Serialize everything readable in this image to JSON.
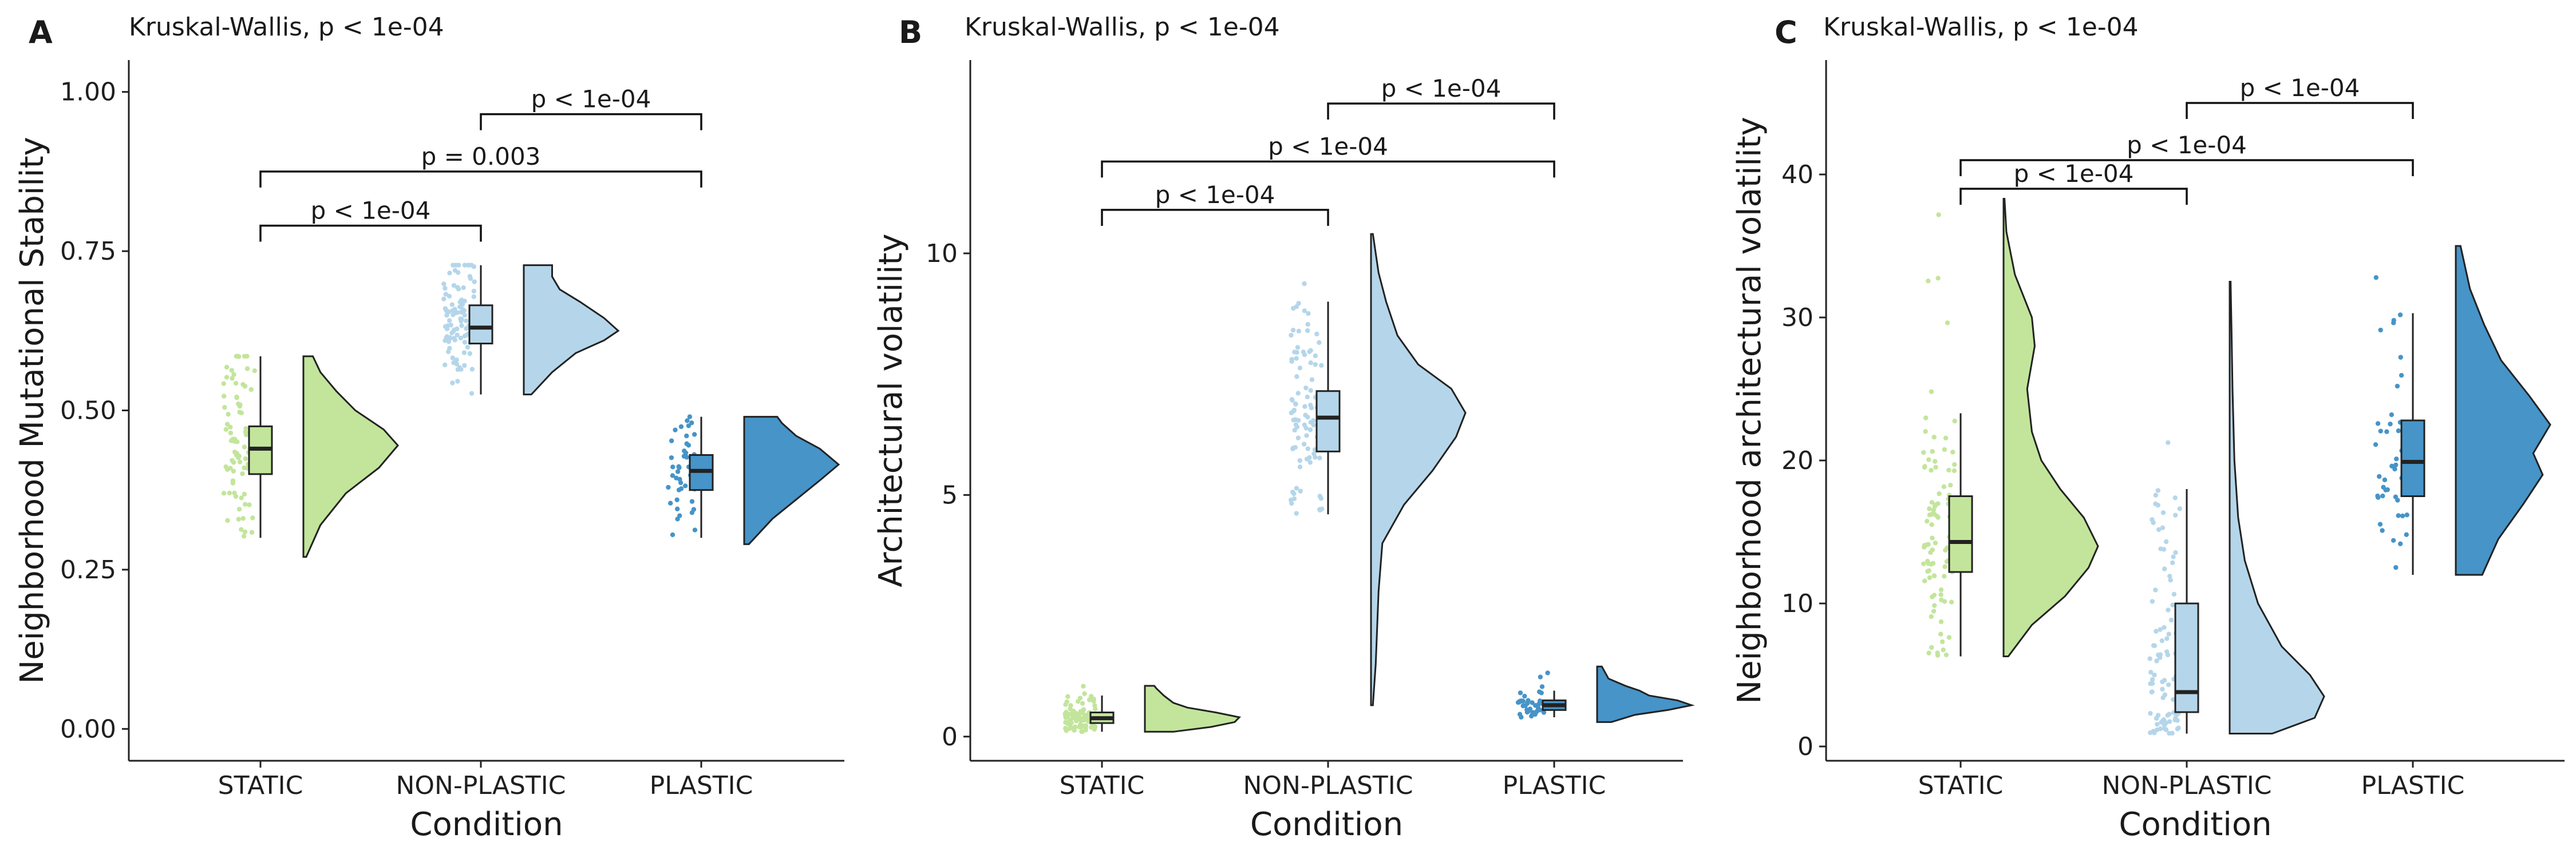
{
  "colors": {
    "STATIC": "#c2e59b",
    "NON-PLASTIC": "#b5d6ea",
    "PLASTIC": "#4694c8"
  },
  "chart_data": [
    {
      "type": "raincloud",
      "panel": "A",
      "test_label": "Kruskal-Wallis, p < 1e-04",
      "xlabel": "Condition",
      "ylabel": "Neighborhood Mutational Stability",
      "ylim": [
        -0.05,
        1.05
      ],
      "yticks": [
        0.0,
        0.25,
        0.5,
        0.75,
        1.0
      ],
      "ytick_labels": [
        "0.00",
        "0.25",
        "0.50",
        "0.75",
        "1.00"
      ],
      "categories": [
        "STATIC",
        "NON-PLASTIC",
        "PLASTIC"
      ],
      "groups": [
        {
          "name": "STATIC",
          "min": 0.27,
          "q1": 0.4,
          "median": 0.44,
          "q3": 0.475,
          "max": 0.585,
          "whisker_low": 0.3,
          "whisker_high": 0.585,
          "n": 90,
          "density": [
            [
              0.27,
              0.03
            ],
            [
              0.32,
              0.18
            ],
            [
              0.37,
              0.45
            ],
            [
              0.41,
              0.8
            ],
            [
              0.445,
              1.0
            ],
            [
              0.47,
              0.85
            ],
            [
              0.5,
              0.55
            ],
            [
              0.53,
              0.35
            ],
            [
              0.56,
              0.18
            ],
            [
              0.585,
              0.1
            ]
          ]
        },
        {
          "name": "NON-PLASTIC",
          "min": 0.525,
          "q1": 0.605,
          "median": 0.63,
          "q3": 0.665,
          "max": 0.728,
          "whisker_low": 0.525,
          "whisker_high": 0.728,
          "n": 100,
          "density": [
            [
              0.525,
              0.08
            ],
            [
              0.56,
              0.3
            ],
            [
              0.59,
              0.55
            ],
            [
              0.61,
              0.85
            ],
            [
              0.625,
              1.0
            ],
            [
              0.645,
              0.85
            ],
            [
              0.67,
              0.6
            ],
            [
              0.69,
              0.38
            ],
            [
              0.71,
              0.3
            ],
            [
              0.728,
              0.3
            ]
          ]
        },
        {
          "name": "PLASTIC",
          "min": 0.29,
          "q1": 0.375,
          "median": 0.405,
          "q3": 0.43,
          "max": 0.49,
          "whisker_low": 0.3,
          "whisker_high": 0.49,
          "n": 45,
          "density": [
            [
              0.29,
              0.05
            ],
            [
              0.33,
              0.3
            ],
            [
              0.36,
              0.55
            ],
            [
              0.39,
              0.8
            ],
            [
              0.415,
              1.0
            ],
            [
              0.44,
              0.8
            ],
            [
              0.46,
              0.55
            ],
            [
              0.48,
              0.4
            ],
            [
              0.49,
              0.35
            ]
          ]
        }
      ],
      "comparisons": [
        {
          "from": "STATIC",
          "to": "NON-PLASTIC",
          "y": 0.79,
          "label": "p < 1e-04"
        },
        {
          "from": "STATIC",
          "to": "PLASTIC",
          "y": 0.875,
          "label": "p = 0.003"
        },
        {
          "from": "NON-PLASTIC",
          "to": "PLASTIC",
          "y": 0.965,
          "label": "p < 1e-04"
        }
      ]
    },
    {
      "type": "raincloud",
      "panel": "B",
      "test_label": "Kruskal-Wallis, p < 1e-04",
      "xlabel": "Condition",
      "ylabel": "Architectural volatility",
      "ylim": [
        -0.5,
        14.0
      ],
      "yticks": [
        0,
        5,
        10
      ],
      "ytick_labels": [
        "0",
        "5",
        "10"
      ],
      "categories": [
        "STATIC",
        "NON-PLASTIC",
        "PLASTIC"
      ],
      "groups": [
        {
          "name": "STATIC",
          "min": 0.1,
          "q1": 0.28,
          "median": 0.38,
          "q3": 0.5,
          "max": 1.05,
          "whisker_low": 0.1,
          "whisker_high": 0.85,
          "n": 100,
          "density": [
            [
              0.1,
              0.3
            ],
            [
              0.2,
              0.7
            ],
            [
              0.3,
              0.95
            ],
            [
              0.4,
              1.0
            ],
            [
              0.5,
              0.75
            ],
            [
              0.6,
              0.45
            ],
            [
              0.7,
              0.3
            ],
            [
              0.85,
              0.2
            ],
            [
              1.0,
              0.12
            ],
            [
              1.05,
              0.1
            ]
          ]
        },
        {
          "name": "NON-PLASTIC",
          "min": 0.65,
          "q1": 5.9,
          "median": 6.6,
          "q3": 7.15,
          "max": 10.4,
          "whisker_low": 4.6,
          "whisker_high": 9.0,
          "n": 100,
          "density": [
            [
              0.65,
              0.02
            ],
            [
              1.5,
              0.05
            ],
            [
              3.0,
              0.08
            ],
            [
              4.0,
              0.12
            ],
            [
              4.8,
              0.35
            ],
            [
              5.5,
              0.65
            ],
            [
              6.2,
              0.9
            ],
            [
              6.7,
              1.0
            ],
            [
              7.2,
              0.85
            ],
            [
              7.7,
              0.5
            ],
            [
              8.3,
              0.28
            ],
            [
              9.0,
              0.16
            ],
            [
              9.6,
              0.08
            ],
            [
              10.4,
              0.02
            ]
          ]
        },
        {
          "name": "PLASTIC",
          "min": 0.3,
          "q1": 0.55,
          "median": 0.65,
          "q3": 0.75,
          "max": 1.45,
          "whisker_low": 0.4,
          "whisker_high": 0.95,
          "n": 45,
          "density": [
            [
              0.3,
              0.15
            ],
            [
              0.45,
              0.4
            ],
            [
              0.55,
              0.75
            ],
            [
              0.65,
              1.0
            ],
            [
              0.75,
              0.85
            ],
            [
              0.85,
              0.55
            ],
            [
              0.95,
              0.45
            ],
            [
              1.05,
              0.3
            ],
            [
              1.2,
              0.12
            ],
            [
              1.45,
              0.05
            ]
          ]
        }
      ],
      "comparisons": [
        {
          "from": "STATIC",
          "to": "NON-PLASTIC",
          "y": 10.9,
          "label": "p < 1e-04"
        },
        {
          "from": "STATIC",
          "to": "PLASTIC",
          "y": 11.9,
          "label": "p < 1e-04"
        },
        {
          "from": "NON-PLASTIC",
          "to": "PLASTIC",
          "y": 13.1,
          "label": "p < 1e-04"
        }
      ]
    },
    {
      "type": "raincloud",
      "panel": "C",
      "test_label": "Kruskal-Wallis, p < 1e-04",
      "xlabel": "Condition",
      "ylabel": "Neighborhood architectural volatility",
      "ylim": [
        -1.0,
        48.0
      ],
      "yticks": [
        0,
        10,
        20,
        30,
        40
      ],
      "ytick_labels": [
        "0",
        "10",
        "20",
        "30",
        "40"
      ],
      "categories": [
        "STATIC",
        "NON-PLASTIC",
        "PLASTIC"
      ],
      "groups": [
        {
          "name": "STATIC",
          "min": 6.3,
          "q1": 12.2,
          "median": 14.3,
          "q3": 17.5,
          "max": 38.3,
          "whisker_low": 6.3,
          "whisker_high": 23.3,
          "n": 100,
          "density": [
            [
              6.3,
              0.05
            ],
            [
              8.5,
              0.3
            ],
            [
              10.5,
              0.65
            ],
            [
              12.5,
              0.9
            ],
            [
              14.0,
              1.0
            ],
            [
              16.0,
              0.85
            ],
            [
              18.0,
              0.6
            ],
            [
              20.0,
              0.4
            ],
            [
              22.0,
              0.3
            ],
            [
              25.0,
              0.25
            ],
            [
              28.0,
              0.33
            ],
            [
              30.0,
              0.3
            ],
            [
              33.0,
              0.12
            ],
            [
              36.0,
              0.03
            ],
            [
              38.3,
              0.01
            ]
          ]
        },
        {
          "name": "NON-PLASTIC",
          "min": 0.9,
          "q1": 2.4,
          "median": 3.8,
          "q3": 10.0,
          "max": 32.5,
          "whisker_low": 0.9,
          "whisker_high": 18.0,
          "n": 100,
          "density": [
            [
              0.9,
              0.45
            ],
            [
              2.0,
              0.9
            ],
            [
              3.5,
              1.0
            ],
            [
              5.0,
              0.85
            ],
            [
              7.0,
              0.55
            ],
            [
              10.0,
              0.3
            ],
            [
              13.0,
              0.16
            ],
            [
              16.0,
              0.09
            ],
            [
              20.0,
              0.05
            ],
            [
              25.0,
              0.03
            ],
            [
              29.0,
              0.02
            ],
            [
              32.5,
              0.01
            ]
          ]
        },
        {
          "name": "PLASTIC",
          "min": 12.0,
          "q1": 17.5,
          "median": 19.9,
          "q3": 22.8,
          "max": 35.0,
          "whisker_low": 12.0,
          "whisker_high": 30.3,
          "n": 45,
          "density": [
            [
              12.0,
              0.28
            ],
            [
              14.5,
              0.45
            ],
            [
              17.0,
              0.72
            ],
            [
              19.0,
              0.92
            ],
            [
              20.5,
              0.82
            ],
            [
              22.5,
              1.0
            ],
            [
              24.5,
              0.78
            ],
            [
              27.0,
              0.48
            ],
            [
              29.5,
              0.3
            ],
            [
              32.0,
              0.15
            ],
            [
              35.0,
              0.05
            ]
          ]
        }
      ],
      "comparisons": [
        {
          "from": "STATIC",
          "to": "NON-PLASTIC",
          "y": 39.0,
          "label": "p < 1e-04"
        },
        {
          "from": "STATIC",
          "to": "PLASTIC",
          "y": 41.0,
          "label": "p < 1e-04"
        },
        {
          "from": "NON-PLASTIC",
          "to": "PLASTIC",
          "y": 45.0,
          "label": "p < 1e-04"
        }
      ]
    }
  ]
}
